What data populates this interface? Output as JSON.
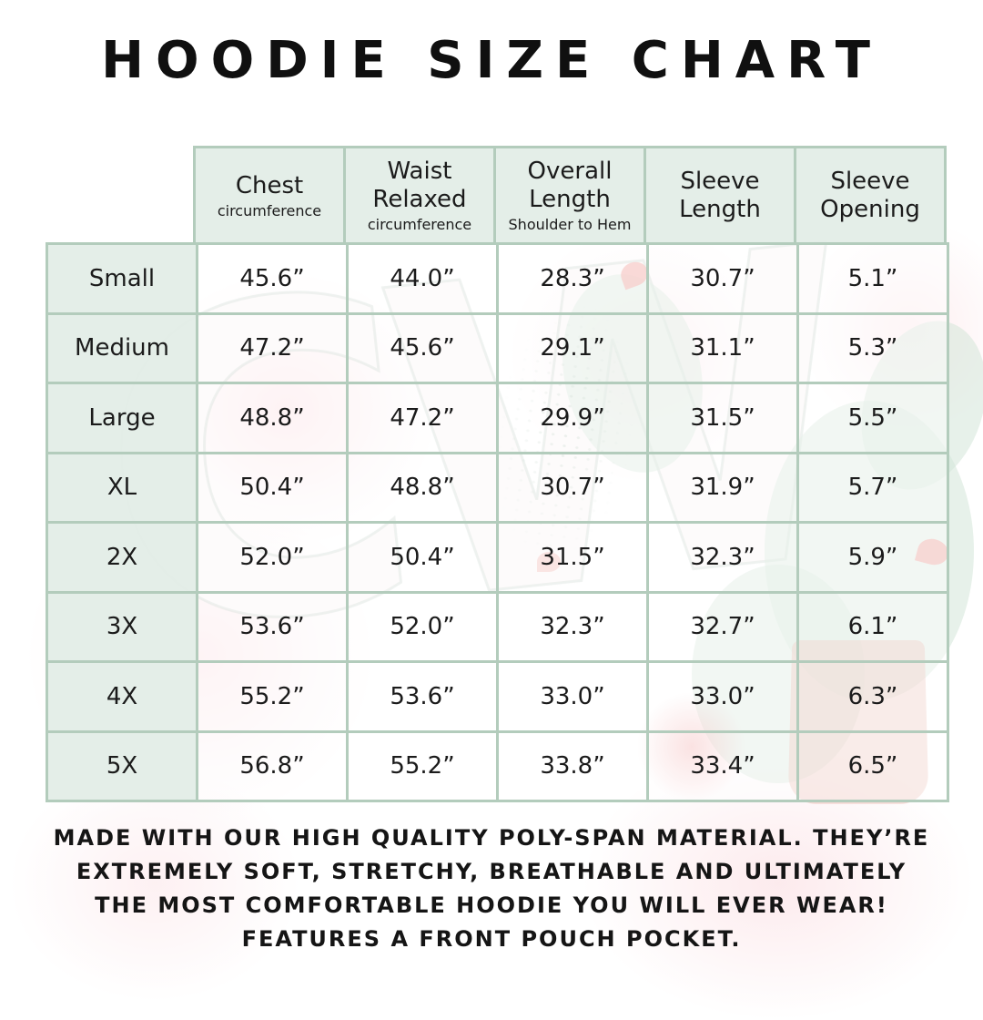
{
  "title": "HOODIE SIZE CHART",
  "watermark": {
    "letters": "CW"
  },
  "size_chart": {
    "columns": [
      {
        "label": "Chest",
        "sublabel": "circumference"
      },
      {
        "label": "Waist Relaxed",
        "sublabel": "circumference"
      },
      {
        "label": "Overall Length",
        "sublabel": "Shoulder to Hem"
      },
      {
        "label": "Sleeve Length",
        "sublabel": ""
      },
      {
        "label": "Sleeve Opening",
        "sublabel": ""
      }
    ],
    "rows": [
      {
        "size": "Small",
        "values": [
          "45.6”",
          "44.0”",
          "28.3”",
          "30.7”",
          "5.1”"
        ]
      },
      {
        "size": "Medium",
        "values": [
          "47.2”",
          "45.6”",
          "29.1”",
          "31.1”",
          "5.3”"
        ]
      },
      {
        "size": "Large",
        "values": [
          "48.8”",
          "47.2”",
          "29.9”",
          "31.5”",
          "5.5”"
        ]
      },
      {
        "size": "XL",
        "values": [
          "50.4”",
          "48.8”",
          "30.7”",
          "31.9”",
          "5.7”"
        ]
      },
      {
        "size": "2X",
        "values": [
          "52.0”",
          "50.4”",
          "31.5”",
          "32.3”",
          "5.9”"
        ]
      },
      {
        "size": "3X",
        "values": [
          "53.6”",
          "52.0”",
          "32.3”",
          "32.7”",
          "6.1”"
        ]
      },
      {
        "size": "4X",
        "values": [
          "55.2”",
          "53.6”",
          "33.0”",
          "33.0”",
          "6.3”"
        ]
      },
      {
        "size": "5X",
        "values": [
          "56.8”",
          "55.2”",
          "33.8”",
          "33.4”",
          "6.5”"
        ]
      }
    ]
  },
  "description": {
    "line1": "MADE WITH OUR HIGH QUALITY POLY-SPAN MATERIAL. THEY’RE",
    "line2": "EXTREMELY SOFT, STRETCHY, BREATHABLE AND ULTIMATELY",
    "line3": "THE MOST COMFORTABLE HOODIE YOU WILL EVER WEAR!",
    "line4": "FEATURES A FRONT POUCH POCKET."
  },
  "colors": {
    "table_border": "#b3ccbc",
    "header_cell_bg": "#e3ede7",
    "text": "#1b1b1b",
    "watermark_pink": "#fad6db",
    "watermark_green": "#d3e5d8"
  }
}
